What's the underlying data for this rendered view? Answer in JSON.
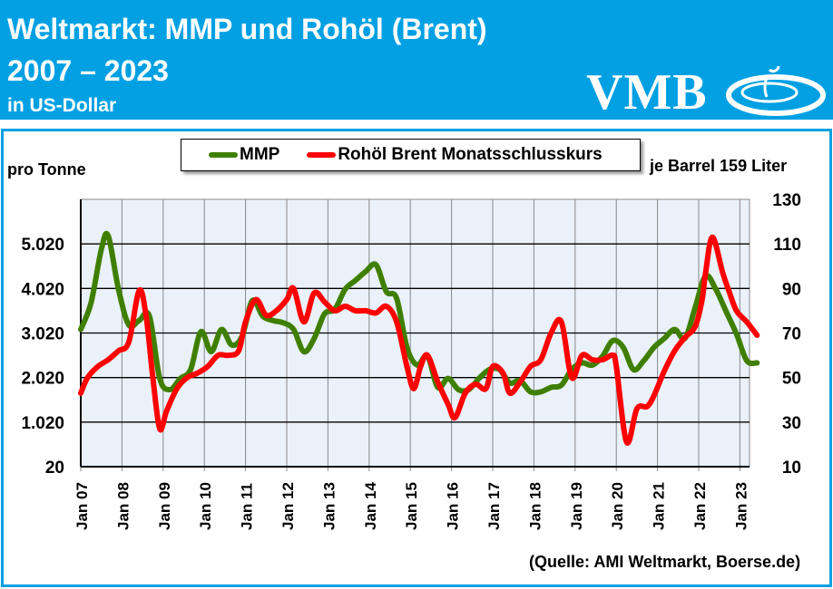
{
  "header": {
    "title_line1": "Weltmarkt: MMP und Rohöl (Brent)",
    "title_line2": "2007 – 2023",
    "subtitle": "in US-Dollar",
    "logo_text": "VMB",
    "color": "#00A0E3"
  },
  "source": "(Quelle: AMI Weltmarkt, Boerse.de)",
  "chart_data": {
    "type": "line",
    "ylabel_left": "pro Tonne",
    "ylabel_right": "je Barrel 159 Liter",
    "ylim_left": [
      20,
      6020
    ],
    "ylim_right": [
      10,
      130
    ],
    "yticks_left": [
      "20",
      "1.020",
      "2.020",
      "3.020",
      "4.020",
      "5.020"
    ],
    "yticks_right": [
      "10",
      "30",
      "50",
      "70",
      "90",
      "110",
      "130"
    ],
    "xticks": [
      "Jan 07",
      "Jan 08",
      "Jan 09",
      "Jan 10",
      "Jan 11",
      "Jan 12",
      "Jan 13",
      "Jan 14",
      "Jan 15",
      "Jan 16",
      "Jan 17",
      "Jan 18",
      "Jan 19",
      "Jan 20",
      "Jan 21",
      "Jan 22",
      "Jan 23"
    ],
    "grid": true,
    "legend_position": "top",
    "series": [
      {
        "name": "MMP",
        "axis": "left",
        "color": "#3F7F00",
        "points": [
          [
            "2007-01",
            3100
          ],
          [
            "2007-04",
            3700
          ],
          [
            "2007-07",
            4900
          ],
          [
            "2007-09",
            5200
          ],
          [
            "2007-12",
            4000
          ],
          [
            "2008-03",
            3200
          ],
          [
            "2008-06",
            3300
          ],
          [
            "2008-09",
            3400
          ],
          [
            "2008-12",
            2000
          ],
          [
            "2009-03",
            1750
          ],
          [
            "2009-06",
            2000
          ],
          [
            "2009-09",
            2200
          ],
          [
            "2009-12",
            3050
          ],
          [
            "2010-03",
            2600
          ],
          [
            "2010-06",
            3100
          ],
          [
            "2010-09",
            2750
          ],
          [
            "2010-12",
            2950
          ],
          [
            "2011-03",
            3750
          ],
          [
            "2011-06",
            3400
          ],
          [
            "2011-09",
            3300
          ],
          [
            "2011-12",
            3250
          ],
          [
            "2012-03",
            3100
          ],
          [
            "2012-06",
            2600
          ],
          [
            "2012-09",
            2900
          ],
          [
            "2012-12",
            3450
          ],
          [
            "2013-03",
            3550
          ],
          [
            "2013-06",
            4000
          ],
          [
            "2013-09",
            4200
          ],
          [
            "2013-12",
            4400
          ],
          [
            "2014-03",
            4550
          ],
          [
            "2014-06",
            3950
          ],
          [
            "2014-09",
            3800
          ],
          [
            "2014-12",
            2700
          ],
          [
            "2015-03",
            2300
          ],
          [
            "2015-06",
            2500
          ],
          [
            "2015-09",
            1800
          ],
          [
            "2015-12",
            2000
          ],
          [
            "2016-03",
            1750
          ],
          [
            "2016-06",
            1750
          ],
          [
            "2016-09",
            2000
          ],
          [
            "2016-12",
            2200
          ],
          [
            "2017-03",
            2200
          ],
          [
            "2017-06",
            1900
          ],
          [
            "2017-09",
            1950
          ],
          [
            "2017-12",
            1700
          ],
          [
            "2018-03",
            1700
          ],
          [
            "2018-06",
            1800
          ],
          [
            "2018-09",
            1850
          ],
          [
            "2018-12",
            2200
          ],
          [
            "2019-03",
            2350
          ],
          [
            "2019-06",
            2300
          ],
          [
            "2019-09",
            2500
          ],
          [
            "2019-12",
            2850
          ],
          [
            "2020-03",
            2700
          ],
          [
            "2020-06",
            2200
          ],
          [
            "2020-09",
            2400
          ],
          [
            "2020-12",
            2700
          ],
          [
            "2021-03",
            2900
          ],
          [
            "2021-06",
            3100
          ],
          [
            "2021-09",
            2900
          ],
          [
            "2021-12",
            3600
          ],
          [
            "2022-03",
            4300
          ],
          [
            "2022-06",
            4000
          ],
          [
            "2022-09",
            3500
          ],
          [
            "2022-12",
            3000
          ],
          [
            "2023-03",
            2400
          ],
          [
            "2023-06",
            2350
          ]
        ]
      },
      {
        "name": "Rohöl Brent Monatsschlusskurs",
        "axis": "right",
        "color": "#FF0000",
        "points": [
          [
            "2007-01",
            43
          ],
          [
            "2007-03",
            50
          ],
          [
            "2007-06",
            55
          ],
          [
            "2007-09",
            58
          ],
          [
            "2007-12",
            62
          ],
          [
            "2008-03",
            66
          ],
          [
            "2008-06",
            89
          ],
          [
            "2008-08",
            78
          ],
          [
            "2008-10",
            50
          ],
          [
            "2008-12",
            27
          ],
          [
            "2009-02",
            35
          ],
          [
            "2009-05",
            45
          ],
          [
            "2009-08",
            50
          ],
          [
            "2009-11",
            52
          ],
          [
            "2010-02",
            55
          ],
          [
            "2010-05",
            60
          ],
          [
            "2010-08",
            60
          ],
          [
            "2010-11",
            62
          ],
          [
            "2011-01",
            75
          ],
          [
            "2011-04",
            85
          ],
          [
            "2011-07",
            78
          ],
          [
            "2011-10",
            80
          ],
          [
            "2012-01",
            85
          ],
          [
            "2012-03",
            90
          ],
          [
            "2012-06",
            75
          ],
          [
            "2012-09",
            88
          ],
          [
            "2012-12",
            84
          ],
          [
            "2013-03",
            80
          ],
          [
            "2013-06",
            82
          ],
          [
            "2013-09",
            80
          ],
          [
            "2013-12",
            80
          ],
          [
            "2014-03",
            79
          ],
          [
            "2014-06",
            82
          ],
          [
            "2014-09",
            75
          ],
          [
            "2014-12",
            55
          ],
          [
            "2015-02",
            45
          ],
          [
            "2015-04",
            55
          ],
          [
            "2015-06",
            60
          ],
          [
            "2015-09",
            48
          ],
          [
            "2015-12",
            38
          ],
          [
            "2016-02",
            32
          ],
          [
            "2016-05",
            43
          ],
          [
            "2016-08",
            47
          ],
          [
            "2016-11",
            45
          ],
          [
            "2017-01",
            55
          ],
          [
            "2017-04",
            52
          ],
          [
            "2017-06",
            43
          ],
          [
            "2017-09",
            48
          ],
          [
            "2017-12",
            55
          ],
          [
            "2018-03",
            58
          ],
          [
            "2018-06",
            70
          ],
          [
            "2018-09",
            75
          ],
          [
            "2018-12",
            50
          ],
          [
            "2019-03",
            60
          ],
          [
            "2019-06",
            58
          ],
          [
            "2019-09",
            58
          ],
          [
            "2019-12",
            60
          ],
          [
            "2020-01",
            55
          ],
          [
            "2020-04",
            21
          ],
          [
            "2020-07",
            36
          ],
          [
            "2020-10",
            37
          ],
          [
            "2020-12",
            42
          ],
          [
            "2021-03",
            53
          ],
          [
            "2021-06",
            62
          ],
          [
            "2021-09",
            68
          ],
          [
            "2021-12",
            73
          ],
          [
            "2022-02",
            85
          ],
          [
            "2022-03",
            97
          ],
          [
            "2022-05",
            113
          ],
          [
            "2022-08",
            97
          ],
          [
            "2022-10",
            88
          ],
          [
            "2022-12",
            80
          ],
          [
            "2023-03",
            75
          ],
          [
            "2023-06",
            69
          ]
        ]
      }
    ]
  }
}
